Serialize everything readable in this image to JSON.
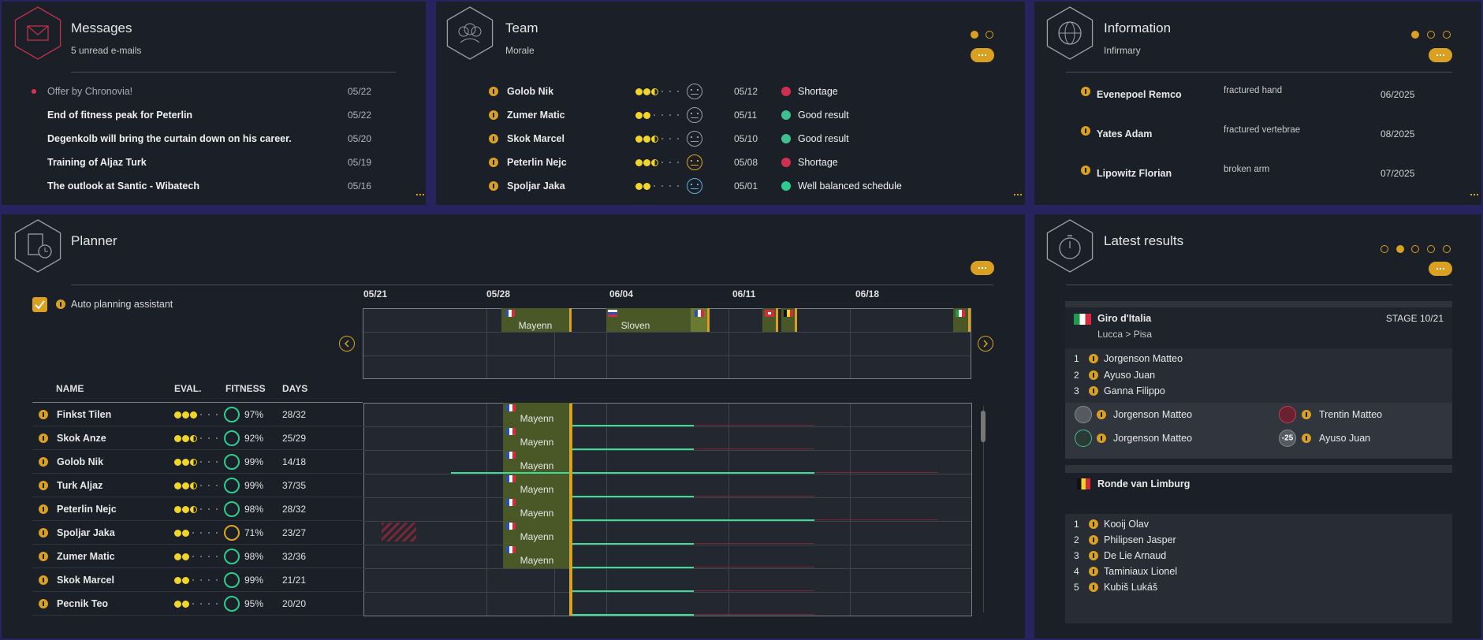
{
  "messages": {
    "title": "Messages",
    "subtitle": "5 unread e-mails",
    "items": [
      {
        "text": "Offer by Chronovia!",
        "date": "05/22"
      },
      {
        "text": "End of fitness peak for Peterlin",
        "date": "05/22"
      },
      {
        "text": "Degenkolb will bring the curtain down on his career.",
        "date": "05/20"
      },
      {
        "text": "Training of Aljaz Turk",
        "date": "05/19"
      },
      {
        "text": "The outlook at Santic - Wibatech",
        "date": "05/16"
      }
    ]
  },
  "team": {
    "title": "Team",
    "subtitle": "Morale",
    "rows": [
      {
        "name": "Golob Nik",
        "date": "05/12",
        "status": "Shortage"
      },
      {
        "name": "Zumer Matic",
        "date": "05/11",
        "status": "Good result"
      },
      {
        "name": "Skok Marcel",
        "date": "05/10",
        "status": "Good result"
      },
      {
        "name": "Peterlin Nejc",
        "date": "05/08",
        "status": "Shortage"
      },
      {
        "name": "Spoljar Jaka",
        "date": "05/01",
        "status": "Well balanced schedule"
      }
    ]
  },
  "information": {
    "title": "Information",
    "subtitle": "Infirmary",
    "rows": [
      {
        "name": "Evenepoel Remco",
        "injury": "fractured hand",
        "until": "06/2025"
      },
      {
        "name": "Yates Adam",
        "injury": "fractured vertebrae",
        "until": "08/2025"
      },
      {
        "name": "Lipowitz Florian",
        "injury": "broken arm",
        "until": "07/2025"
      }
    ]
  },
  "planner": {
    "title": "Planner",
    "assistant": "Auto planning assistant",
    "weeks": [
      "05/21",
      "05/28",
      "06/04",
      "06/11",
      "06/18"
    ],
    "team_races": [
      "Mayenn",
      "Sloven"
    ],
    "columns": [
      "NAME",
      "EVAL.",
      "FITNESS",
      "DAYS"
    ],
    "riders": [
      {
        "name": "Finkst Tilen",
        "fitness": "97%",
        "days": "28/32",
        "race": "Mayenn"
      },
      {
        "name": "Skok Anze",
        "fitness": "92%",
        "days": "25/29",
        "race": "Mayenn"
      },
      {
        "name": "Golob Nik",
        "fitness": "99%",
        "days": "14/18",
        "race": "Mayenn"
      },
      {
        "name": "Turk Aljaz",
        "fitness": "99%",
        "days": "37/35",
        "race": "Mayenn"
      },
      {
        "name": "Peterlin Nejc",
        "fitness": "98%",
        "days": "28/32",
        "race": "Mayenn"
      },
      {
        "name": "Spoljar Jaka",
        "fitness": "71%",
        "days": "23/27",
        "race": "Mayenn"
      },
      {
        "name": "Zumer Matic",
        "fitness": "98%",
        "days": "32/36",
        "race": "Mayenn"
      },
      {
        "name": "Skok Marcel",
        "fitness": "99%",
        "days": "21/21"
      },
      {
        "name": "Pecnik Teo",
        "fitness": "95%",
        "days": "20/20"
      }
    ]
  },
  "latest_results": {
    "title": "Latest results",
    "races": [
      {
        "name": "Giro d'Italia",
        "stage": "STAGE 10/21",
        "route": "Lucca > Pisa",
        "ranking": [
          {
            "position": 1,
            "name": "Jorgenson Matteo"
          },
          {
            "position": 2,
            "name": "Ayuso Juan"
          },
          {
            "position": 3,
            "name": "Ganna Filippo"
          }
        ],
        "jerseys": [
          {
            "name": "Jorgenson Matteo"
          },
          {
            "name": "Trentin Matteo"
          },
          {
            "name": "Jorgenson Matteo"
          },
          {
            "name": "Ayuso Juan",
            "badge": "-25"
          }
        ]
      },
      {
        "name": "Ronde van Limburg",
        "ranking": [
          {
            "position": 1,
            "name": "Kooij Olav"
          },
          {
            "position": 2,
            "name": "Philipsen Jasper"
          },
          {
            "position": 3,
            "name": "De Lie Arnaud"
          },
          {
            "position": 4,
            "name": "Taminiaux Lionel"
          },
          {
            "position": 5,
            "name": "Kubiš Lukáš"
          }
        ]
      }
    ]
  }
}
